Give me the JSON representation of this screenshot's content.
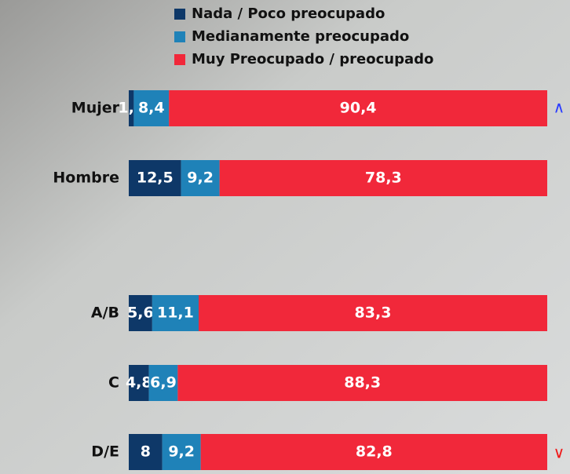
{
  "chart_data": {
    "type": "bar",
    "orientation": "horizontal",
    "stacked": true,
    "categories": [
      "Mujer",
      "Hombre",
      "A/B",
      "C",
      "D/E"
    ],
    "xlim": [
      0,
      100
    ],
    "series": [
      {
        "name": "Nada / Poco  preocupado",
        "color": "#0e3868",
        "values": [
          1.2,
          12.5,
          5.6,
          4.8,
          8
        ],
        "value_labels": [
          "1,2",
          "12,5",
          "5,6",
          "4,8",
          "8"
        ]
      },
      {
        "name": "Medianamente preocupado",
        "color": "#1f82b8",
        "values": [
          8.4,
          9.2,
          11.1,
          6.9,
          9.2
        ],
        "value_labels": [
          "8,4",
          "9,2",
          "11,1",
          "6,9",
          "9,2"
        ]
      },
      {
        "name": "Muy Preocupado / preocupado",
        "color": "#f1283a",
        "values": [
          90.4,
          78.3,
          83.3,
          88.3,
          82.8
        ],
        "value_labels": [
          "90,4",
          "78,3",
          "83,3",
          "88,3",
          "82,8"
        ]
      }
    ]
  }
}
